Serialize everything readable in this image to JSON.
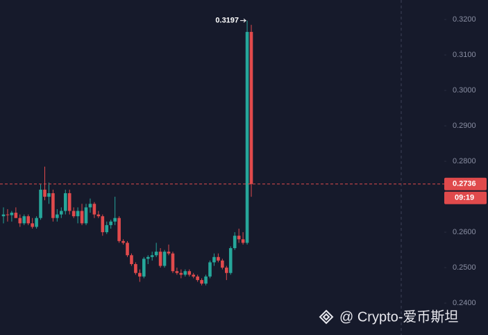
{
  "chart_data": {
    "type": "candlestick",
    "open": [
      0.2645,
      0.265,
      0.2648,
      0.2655,
      0.264,
      0.2625,
      0.2645,
      0.2625,
      0.2615,
      0.264,
      0.272,
      0.27,
      0.271,
      0.264,
      0.265,
      0.266,
      0.271,
      0.266,
      0.2645,
      0.266,
      0.2625,
      0.267,
      0.268,
      0.265,
      0.2645,
      0.26,
      0.262,
      0.263,
      0.264,
      0.2575,
      0.257,
      0.2535,
      0.251,
      0.2485,
      0.2475,
      0.2525,
      0.253,
      0.2535,
      0.2545,
      0.2505,
      0.2545,
      0.254,
      0.249,
      0.2485,
      0.248,
      0.249,
      0.248,
      0.2475,
      0.2465,
      0.2455,
      0.2475,
      0.2515,
      0.253,
      0.252,
      0.25,
      0.2485,
      0.2555,
      0.259,
      0.258,
      0.257,
      0.3165
    ],
    "high": [
      0.267,
      0.2665,
      0.266,
      0.267,
      0.265,
      0.265,
      0.265,
      0.264,
      0.2645,
      0.2735,
      0.2785,
      0.274,
      0.272,
      0.2665,
      0.267,
      0.272,
      0.272,
      0.267,
      0.267,
      0.268,
      0.268,
      0.2695,
      0.2685,
      0.266,
      0.265,
      0.263,
      0.2635,
      0.27,
      0.2645,
      0.258,
      0.2575,
      0.254,
      0.2515,
      0.2495,
      0.253,
      0.2535,
      0.2545,
      0.257,
      0.2555,
      0.255,
      0.2565,
      0.2545,
      0.25,
      0.2495,
      0.2495,
      0.2495,
      0.2485,
      0.248,
      0.247,
      0.248,
      0.252,
      0.254,
      0.254,
      0.2525,
      0.2505,
      0.256,
      0.26,
      0.261,
      0.26,
      0.3197,
      0.3185
    ],
    "low": [
      0.2625,
      0.263,
      0.263,
      0.264,
      0.2615,
      0.262,
      0.262,
      0.261,
      0.261,
      0.2635,
      0.269,
      0.268,
      0.263,
      0.263,
      0.264,
      0.265,
      0.265,
      0.264,
      0.2625,
      0.262,
      0.262,
      0.2655,
      0.264,
      0.264,
      0.259,
      0.2595,
      0.261,
      0.262,
      0.257,
      0.2565,
      0.253,
      0.2505,
      0.248,
      0.246,
      0.247,
      0.251,
      0.252,
      0.253,
      0.25,
      0.25,
      0.2535,
      0.2485,
      0.248,
      0.247,
      0.2475,
      0.2475,
      0.247,
      0.246,
      0.245,
      0.245,
      0.247,
      0.2505,
      0.2515,
      0.2495,
      0.2465,
      0.248,
      0.255,
      0.257,
      0.2565,
      0.2565,
      0.27
    ],
    "close": [
      0.265,
      0.2648,
      0.2655,
      0.264,
      0.2625,
      0.2645,
      0.2625,
      0.2615,
      0.264,
      0.272,
      0.27,
      0.271,
      0.264,
      0.265,
      0.266,
      0.271,
      0.266,
      0.2645,
      0.266,
      0.2625,
      0.267,
      0.268,
      0.265,
      0.2645,
      0.26,
      0.262,
      0.263,
      0.264,
      0.2575,
      0.257,
      0.2535,
      0.251,
      0.2485,
      0.2475,
      0.2525,
      0.253,
      0.2535,
      0.2545,
      0.2505,
      0.2545,
      0.254,
      0.249,
      0.2485,
      0.248,
      0.249,
      0.248,
      0.2475,
      0.2465,
      0.2455,
      0.2475,
      0.2515,
      0.253,
      0.252,
      0.25,
      0.2485,
      0.2555,
      0.259,
      0.258,
      0.257,
      0.3165,
      0.2736
    ],
    "up_color": "#26a69a",
    "down_color": "#e04a4c",
    "ylim": [
      0.231,
      0.3255
    ],
    "yticks": [
      {
        "value": 0.32,
        "label": "0.3200"
      },
      {
        "value": 0.31,
        "label": "0.3100"
      },
      {
        "value": 0.3,
        "label": "0.3000"
      },
      {
        "value": 0.29,
        "label": "0.2900"
      },
      {
        "value": 0.28,
        "label": "0.2800"
      },
      {
        "value": 0.26,
        "label": "0.2600"
      },
      {
        "value": 0.25,
        "label": "0.2500"
      },
      {
        "value": 0.24,
        "label": "0.2400"
      }
    ],
    "last_price": 0.2736,
    "countdown": "09:19",
    "high_label": 0.3197,
    "watermark": "@ Crypto-爱币斯坦"
  }
}
